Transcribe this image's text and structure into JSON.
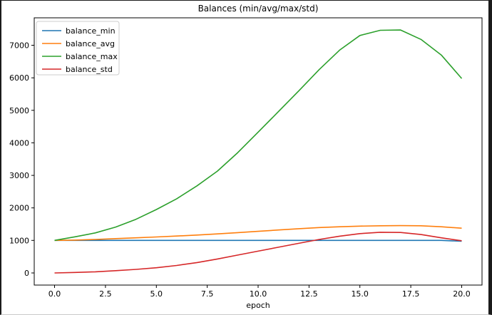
{
  "window": {
    "background": "#ffffff",
    "border_color": "#1b1b1b"
  },
  "chart_data": {
    "type": "line",
    "title": "Balances (min/avg/max/std)",
    "xlabel": "epoch",
    "ylabel": "",
    "grid": false,
    "xlim": [
      -1,
      21
    ],
    "ylim": [
      -373,
      7844
    ],
    "x": [
      0,
      1,
      2,
      3,
      4,
      5,
      6,
      7,
      8,
      9,
      10,
      11,
      12,
      13,
      14,
      15,
      16,
      17,
      18,
      19,
      20
    ],
    "series": [
      {
        "name": "balance_min",
        "color": "#1f77b4",
        "values": [
          1000,
          1000,
          1000,
          1000,
          1000,
          1000,
          1000,
          1000,
          1000,
          1000,
          1000,
          1000,
          1000,
          1000,
          1000,
          1000,
          1000,
          1000,
          1000,
          1000,
          975
        ]
      },
      {
        "name": "balance_avg",
        "color": "#ff7f0e",
        "values": [
          1000,
          1010,
          1030,
          1055,
          1080,
          1105,
          1135,
          1165,
          1200,
          1240,
          1280,
          1320,
          1360,
          1395,
          1420,
          1440,
          1450,
          1455,
          1450,
          1420,
          1375
        ]
      },
      {
        "name": "balance_max",
        "color": "#2ca02c",
        "values": [
          1000,
          1110,
          1230,
          1410,
          1650,
          1950,
          2280,
          2680,
          3130,
          3700,
          4330,
          4960,
          5600,
          6250,
          6850,
          7300,
          7460,
          7470,
          7180,
          6700,
          5980
        ]
      },
      {
        "name": "balance_std",
        "color": "#d62728",
        "values": [
          0,
          15,
          35,
          70,
          110,
          160,
          230,
          320,
          430,
          550,
          670,
          790,
          910,
          1030,
          1130,
          1210,
          1250,
          1245,
          1180,
          1080,
          990
        ]
      }
    ],
    "xticks": {
      "values": [
        0,
        2.5,
        5,
        7.5,
        10,
        12.5,
        15,
        17.5,
        20
      ],
      "labels": [
        "0.0",
        "2.5",
        "5.0",
        "7.5",
        "10.0",
        "12.5",
        "15.0",
        "17.5",
        "20.0"
      ]
    },
    "yticks": {
      "values": [
        0,
        1000,
        2000,
        3000,
        4000,
        5000,
        6000,
        7000
      ],
      "labels": [
        "0",
        "1000",
        "2000",
        "3000",
        "4000",
        "5000",
        "6000",
        "7000"
      ]
    },
    "legend": {
      "position": "upper left",
      "entries": [
        "balance_min",
        "balance_avg",
        "balance_max",
        "balance_std"
      ]
    }
  }
}
